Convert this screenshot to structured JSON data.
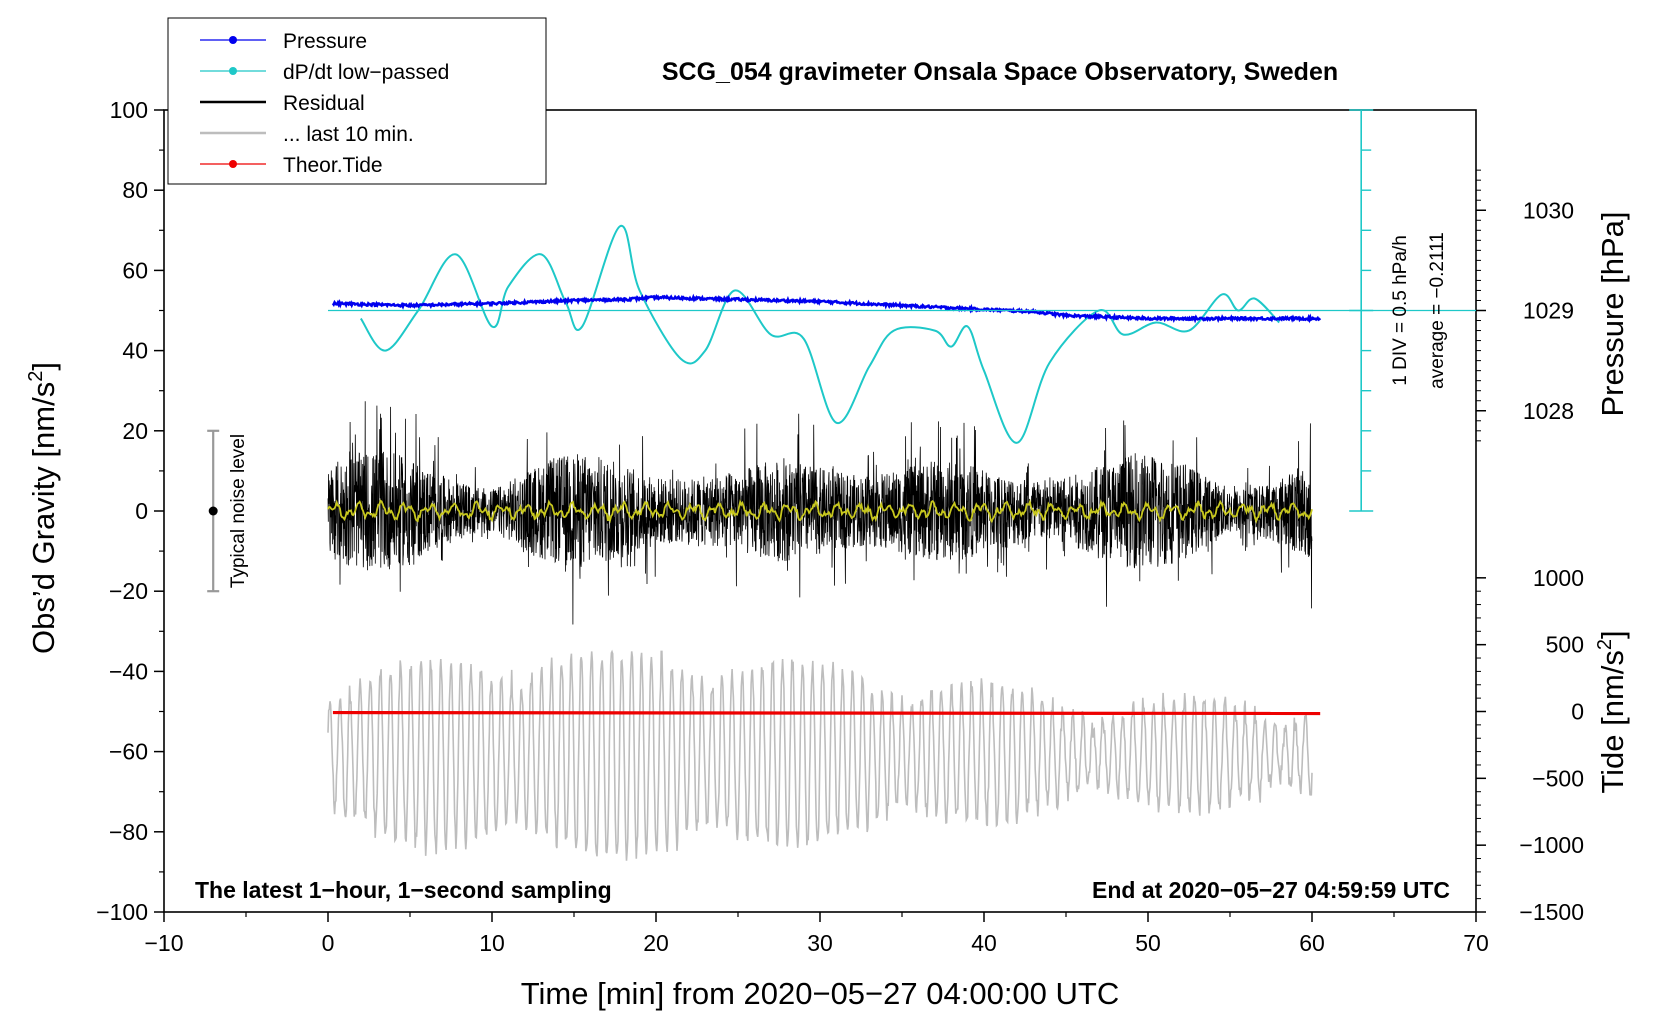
{
  "chart_data": {
    "type": "line",
    "title": "SCG_054 gravimeter Onsala Space Observatory, Sweden",
    "xlabel": "Time [min] from 2020−05−27 04:00:00 UTC",
    "ylabel": "Obs’d Gravity [nm/s²]",
    "ylabel_main": "Obs’d Gravity [nm/s",
    "ylabel_sup": "2",
    "ylabel_tail": "]",
    "xlim": [
      -10,
      70
    ],
    "ylim": [
      -100,
      100
    ],
    "x_ticks": [
      "−10",
      "0",
      "10",
      "20",
      "30",
      "40",
      "50",
      "60",
      "70"
    ],
    "y_ticks": [
      "100",
      "80",
      "60",
      "40",
      "20",
      "0",
      "−20",
      "−40",
      "−60",
      "−80",
      "−100"
    ],
    "pressure_axis": {
      "label": "Pressure [hPa]",
      "ticks": [
        {
          "label": "1030",
          "value": 1030
        },
        {
          "label": "1029",
          "value": 1029
        },
        {
          "label": "1028",
          "value": 1028
        }
      ]
    },
    "tide_axis": {
      "label_main": "Tide [nm/s",
      "label_sup": "2",
      "label_tail": "]",
      "ticks": [
        {
          "label": "1000",
          "value": 1000
        },
        {
          "label": "500",
          "value": 500
        },
        {
          "label": "0",
          "value": 0
        },
        {
          "label": "−500",
          "value": -500
        },
        {
          "label": "−1000",
          "value": -1000
        },
        {
          "label": "−1500",
          "value": -1500
        }
      ]
    },
    "dpdt_scale": {
      "div_label": "1 DIV = 0.5 hPa/h",
      "average_label": "average = −0.2111"
    },
    "noise_bar": {
      "label": "Typical noise level",
      "x": -7,
      "center": 0,
      "low": -20,
      "high": 20
    },
    "annotations": {
      "left": "The latest 1−hour, 1−second sampling",
      "right": "End at 2020−05−27 04:59:59 UTC"
    },
    "legend": [
      {
        "name": "Pressure",
        "color": "#0000ee",
        "marker": true
      },
      {
        "name": "dP/dt low−passed",
        "color": "#1ec8c8",
        "marker": true
      },
      {
        "name": "Residual",
        "color": "#000000",
        "marker": false
      },
      {
        "name": "... last 10 min.",
        "color": "#bdbdbd",
        "marker": false
      },
      {
        "name": "Theor.Tide",
        "color": "#ee0000",
        "marker": true
      }
    ],
    "series": [
      {
        "name": "Pressure",
        "color": "#0000ee",
        "unit": "hPa",
        "x": [
          0.3,
          5,
          10,
          15,
          18,
          20,
          25,
          30,
          35,
          40,
          43,
          45,
          50,
          55,
          60.5
        ],
        "values": [
          1029.07,
          1029.05,
          1029.07,
          1029.1,
          1029.11,
          1029.13,
          1029.11,
          1029.09,
          1029.05,
          1029.01,
          1028.99,
          1028.95,
          1028.92,
          1028.92,
          1028.92
        ]
      },
      {
        "name": "dP/dt low−passed",
        "color": "#1ec8c8",
        "unit": "gravity-axis units (baseline 50)",
        "x": [
          2,
          3.5,
          5.5,
          7.8,
          10,
          11,
          13,
          14.5,
          15.5,
          17.8,
          19,
          21.5,
          23,
          24.8,
          27,
          29,
          31,
          33,
          34.5,
          37,
          38,
          39,
          40,
          42,
          44,
          47,
          48.5,
          50.5,
          52.5,
          54.5,
          55.5,
          56.5,
          58
        ],
        "values": [
          48,
          40,
          50,
          64,
          46,
          56,
          64,
          52,
          46,
          71,
          55,
          38,
          40,
          55,
          44,
          43,
          22,
          36,
          45,
          45,
          41,
          46,
          35,
          17,
          37,
          50,
          44,
          47,
          45,
          54,
          50,
          53,
          47
        ]
      },
      {
        "name": "Residual",
        "color": "#000000",
        "unit": "nm/s²",
        "x_range": [
          0,
          60
        ],
        "envelope_min": -31,
        "envelope_max": 32
      },
      {
        "name": "Residual smoothed",
        "color": "#c8c81e",
        "unit": "nm/s²",
        "x_range": [
          0,
          60
        ],
        "envelope_min": -3,
        "envelope_max": 3
      },
      {
        "name": "... last 10 min.",
        "color": "#bdbdbd",
        "unit": "nm/s² (offset −62)",
        "x_range": [
          0,
          60
        ],
        "envelope_min": -89,
        "envelope_max": -35
      },
      {
        "name": "Theor.Tide",
        "color": "#ee0000",
        "unit": "nm/s²",
        "x": [
          0.3,
          60.5
        ],
        "values": [
          -8,
          -15
        ]
      }
    ]
  }
}
